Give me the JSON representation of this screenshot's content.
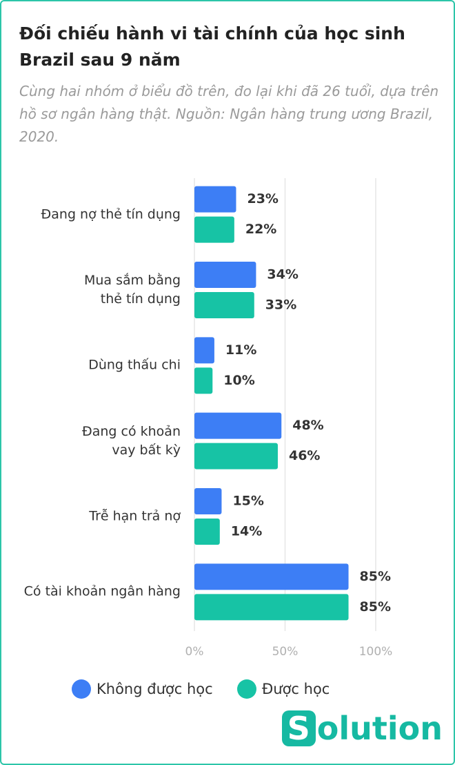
{
  "chart_data": {
    "type": "bar",
    "orientation": "horizontal",
    "title": "Đối chiếu hành vi tài chính của học sinh Brazil sau 9 năm",
    "subtitle": "Cùng hai nhóm ở biểu đồ trên, đo lại khi đã 26 tuổi, dựa trên hồ sơ ngân hàng thật. Nguồn: Ngân hàng trung ương Brazil, 2020.",
    "categories": [
      "Đang nợ thẻ tín dụng",
      "Mua sắm bằng\nthẻ tín dụng",
      "Dùng thấu chi",
      "Đang có khoản\nvay bất kỳ",
      "Trễ hạn trả nợ",
      "Có tài khoản ngân hàng"
    ],
    "series": [
      {
        "name": "Không được học",
        "color": "#3d7ef5",
        "values": [
          23,
          34,
          11,
          48,
          15,
          85
        ],
        "value_labels": [
          "23%",
          "34%",
          "11%",
          "48%",
          "15%",
          "85%"
        ]
      },
      {
        "name": "Được học",
        "color": "#17c3a5",
        "values": [
          22,
          33,
          10,
          46,
          14,
          85
        ],
        "value_labels": [
          "22%",
          "33%",
          "10%",
          "46%",
          "14%",
          "85%"
        ]
      }
    ],
    "xlim": [
      0,
      100
    ],
    "xticks": [
      {
        "value": 0,
        "label": "0%"
      },
      {
        "value": 50,
        "label": "50%"
      },
      {
        "value": 100,
        "label": "100%"
      }
    ],
    "grid": true,
    "legend": "bottom"
  },
  "logo": {
    "box": "S",
    "text": "olution"
  }
}
